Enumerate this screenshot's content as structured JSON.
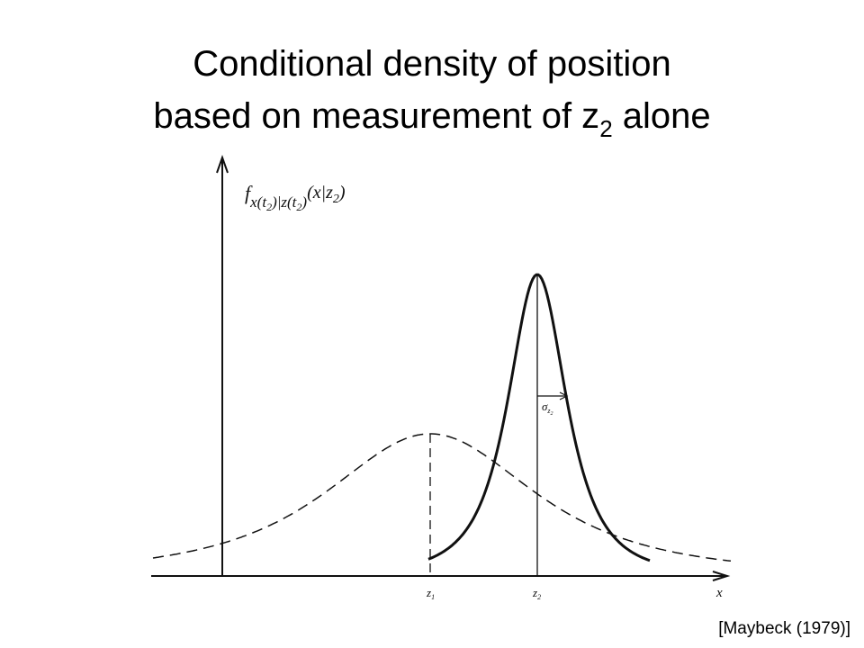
{
  "title": {
    "line1": "Conditional density of position",
    "line2": {
      "before": "based on measurement of z",
      "subscript": "2",
      "after": " alone"
    }
  },
  "figure": {
    "ylabel": {
      "f": "f",
      "sub": [
        "x(t",
        "2",
        ")|z(t",
        "2",
        ")"
      ],
      "arg": [
        "(x|z",
        "2",
        ")"
      ]
    },
    "xlabel": "x",
    "z1": {
      "z": "z",
      "sub": "1"
    },
    "z2": {
      "z": "z",
      "sub": "2"
    },
    "sigma": {
      "s": "σ",
      "sub": "z",
      "subsub": "2"
    }
  },
  "citation": "[Maybeck (1979)]"
}
